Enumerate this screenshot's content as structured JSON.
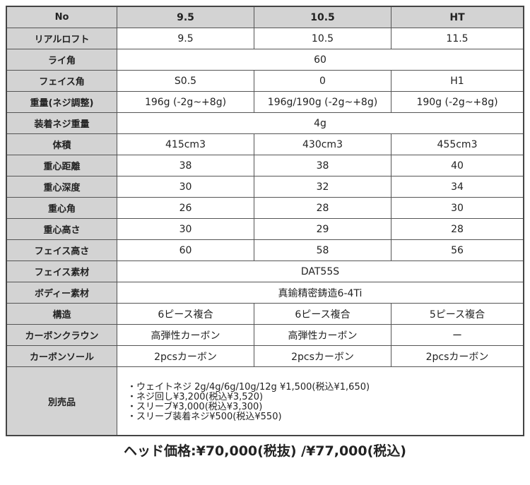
{
  "header": [
    "No",
    "9.5",
    "10.5",
    "HT"
  ],
  "rows": [
    {
      "label": "リアルロフト",
      "values": [
        "9.5",
        "10.5",
        "11.5"
      ]
    },
    {
      "label": "ライ角",
      "merged": "60"
    },
    {
      "label": "フェイス角",
      "values": [
        "S0.5",
        "0",
        "H1"
      ]
    },
    {
      "label": "重量(ネジ調整)",
      "values": [
        "196g (-2g~+8g)",
        "196g/190g (-2g~+8g)",
        "190g (-2g~+8g)"
      ]
    },
    {
      "label": "装着ネジ重量",
      "merged": "4g"
    },
    {
      "label": "体積",
      "values": [
        "415cm3",
        "430cm3",
        "455cm3"
      ]
    },
    {
      "label": "重心距離",
      "values": [
        "38",
        "38",
        "40"
      ]
    },
    {
      "label": "重心深度",
      "values": [
        "30",
        "32",
        "34"
      ]
    },
    {
      "label": "重心角",
      "values": [
        "26",
        "28",
        "30"
      ]
    },
    {
      "label": "重心高さ",
      "values": [
        "30",
        "29",
        "28"
      ]
    },
    {
      "label": "フェイス高さ",
      "values": [
        "60",
        "58",
        "56"
      ]
    },
    {
      "label": "フェイス素材",
      "merged": "DAT55S"
    },
    {
      "label": "ボディー素材",
      "merged": "真鍮精密鋳造6-4Ti"
    },
    {
      "label": "構造",
      "values": [
        "6ピース複合",
        "6ピース複合",
        "5ピース複合"
      ]
    },
    {
      "label": "カーボンクラウン",
      "values": [
        "高弾性カーボン",
        "高弾性カーボン",
        "ー"
      ]
    },
    {
      "label": "カーボンソール",
      "values": [
        "2pcsカーボン",
        "2pcsカーボン",
        "2pcsカーボン"
      ]
    }
  ],
  "accessories": {
    "label": "別売品",
    "items": [
      "・ウェイトネジ  2g/4g/6g/10g/12g  ¥1,500(税込¥1,650)",
      "・ネジ回し¥3,200(税込¥3,520)",
      "・スリーブ¥3,000(税込¥3,300)",
      "・スリーブ装着ネジ¥500(税込¥550)"
    ]
  },
  "price": "ヘッド価格:¥70,000(税抜) /¥77,000(税込)"
}
